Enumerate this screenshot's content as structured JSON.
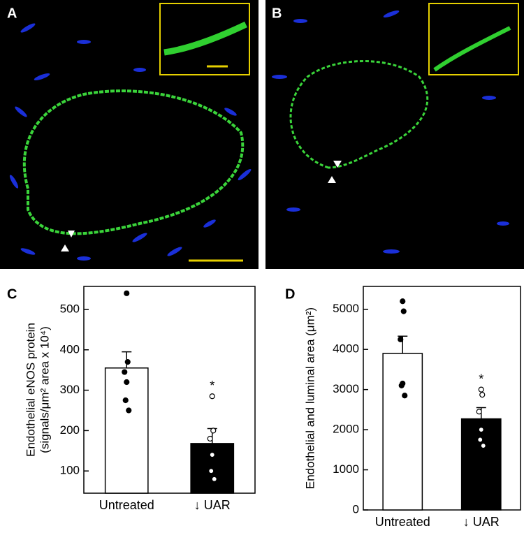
{
  "panels": [
    "A",
    "B"
  ],
  "chart_data": [
    {
      "type": "bar",
      "panel": "C",
      "ylabel": [
        "Endothelial eNOS protein",
        "(signals/μm² area x 10⁴)"
      ],
      "categories": [
        "Untreated",
        "↓ UAR"
      ],
      "values": [
        355,
        168
      ],
      "errors": [
        40,
        37
      ],
      "points": [
        [
          540,
          370,
          345,
          320,
          275,
          250
        ],
        [
          285,
          200,
          180,
          140,
          100,
          80
        ]
      ],
      "colors": [
        "#ffffff",
        "#000000"
      ],
      "point_colors": [
        "#000000",
        "#ffffff"
      ],
      "annotation": "*",
      "ylim": [
        45,
        557
      ],
      "yticks": [
        100,
        200,
        300,
        400,
        500
      ]
    },
    {
      "type": "bar",
      "panel": "D",
      "ylabel": [
        "Endothelial and luminal area (μm²)"
      ],
      "categories": [
        "Untreated",
        "↓ UAR"
      ],
      "values": [
        3900,
        2270
      ],
      "errors": [
        430,
        280
      ],
      "points": [
        [
          5200,
          4950,
          4250,
          3150,
          3100,
          2850
        ],
        [
          3000,
          2870,
          2450,
          2000,
          1750,
          1600
        ]
      ],
      "colors": [
        "#ffffff",
        "#000000"
      ],
      "point_colors": [
        "#000000",
        "#ffffff"
      ],
      "annotation": "*",
      "ylim": [
        0,
        5570
      ],
      "yticks": [
        0,
        1000,
        2000,
        3000,
        4000,
        5000
      ]
    }
  ]
}
